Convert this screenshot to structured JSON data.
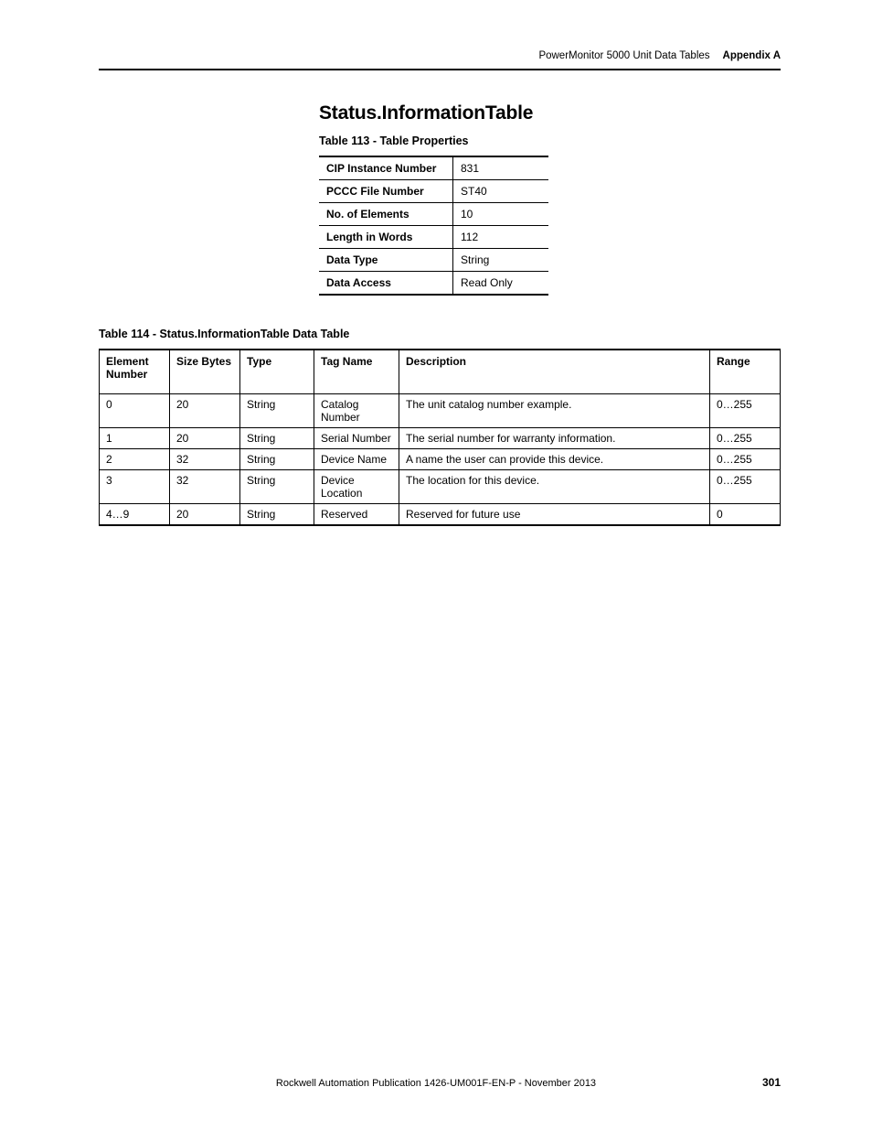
{
  "header": {
    "doc_title": "PowerMonitor 5000 Unit Data Tables",
    "appendix": "Appendix A"
  },
  "section_title": "Status.InformationTable",
  "table113": {
    "caption": "Table 113 - Table Properties",
    "rows": [
      {
        "k": "CIP Instance Number",
        "v": "831"
      },
      {
        "k": "PCCC File Number",
        "v": "ST40"
      },
      {
        "k": "No. of Elements",
        "v": "10"
      },
      {
        "k": "Length in Words",
        "v": "112"
      },
      {
        "k": "Data Type",
        "v": "String"
      },
      {
        "k": "Data Access",
        "v": "Read Only"
      }
    ]
  },
  "table114": {
    "caption": "Table 114 - Status.InformationTable Data Table",
    "columns": [
      "Element Number",
      "Size Bytes",
      "Type",
      "Tag Name",
      "Description",
      "Range"
    ],
    "rows": [
      {
        "el": "0",
        "sz": "20",
        "ty": "String",
        "tg": "Catalog Number",
        "de": "The unit catalog number example.",
        "rg": "0…255"
      },
      {
        "el": "1",
        "sz": "20",
        "ty": "String",
        "tg": "Serial Number",
        "de": "The serial number for warranty information.",
        "rg": "0…255"
      },
      {
        "el": "2",
        "sz": "32",
        "ty": "String",
        "tg": "Device Name",
        "de": "A name the user can provide this device.",
        "rg": "0…255"
      },
      {
        "el": "3",
        "sz": "32",
        "ty": "String",
        "tg": "Device Location",
        "de": "The location for this device.",
        "rg": "0…255"
      },
      {
        "el": "4…9",
        "sz": "20",
        "ty": "String",
        "tg": "Reserved",
        "de": "Reserved for future use",
        "rg": "0"
      }
    ]
  },
  "footer": {
    "pub": "Rockwell Automation Publication 1426-UM001F-EN-P - November 2013",
    "page": "301"
  }
}
